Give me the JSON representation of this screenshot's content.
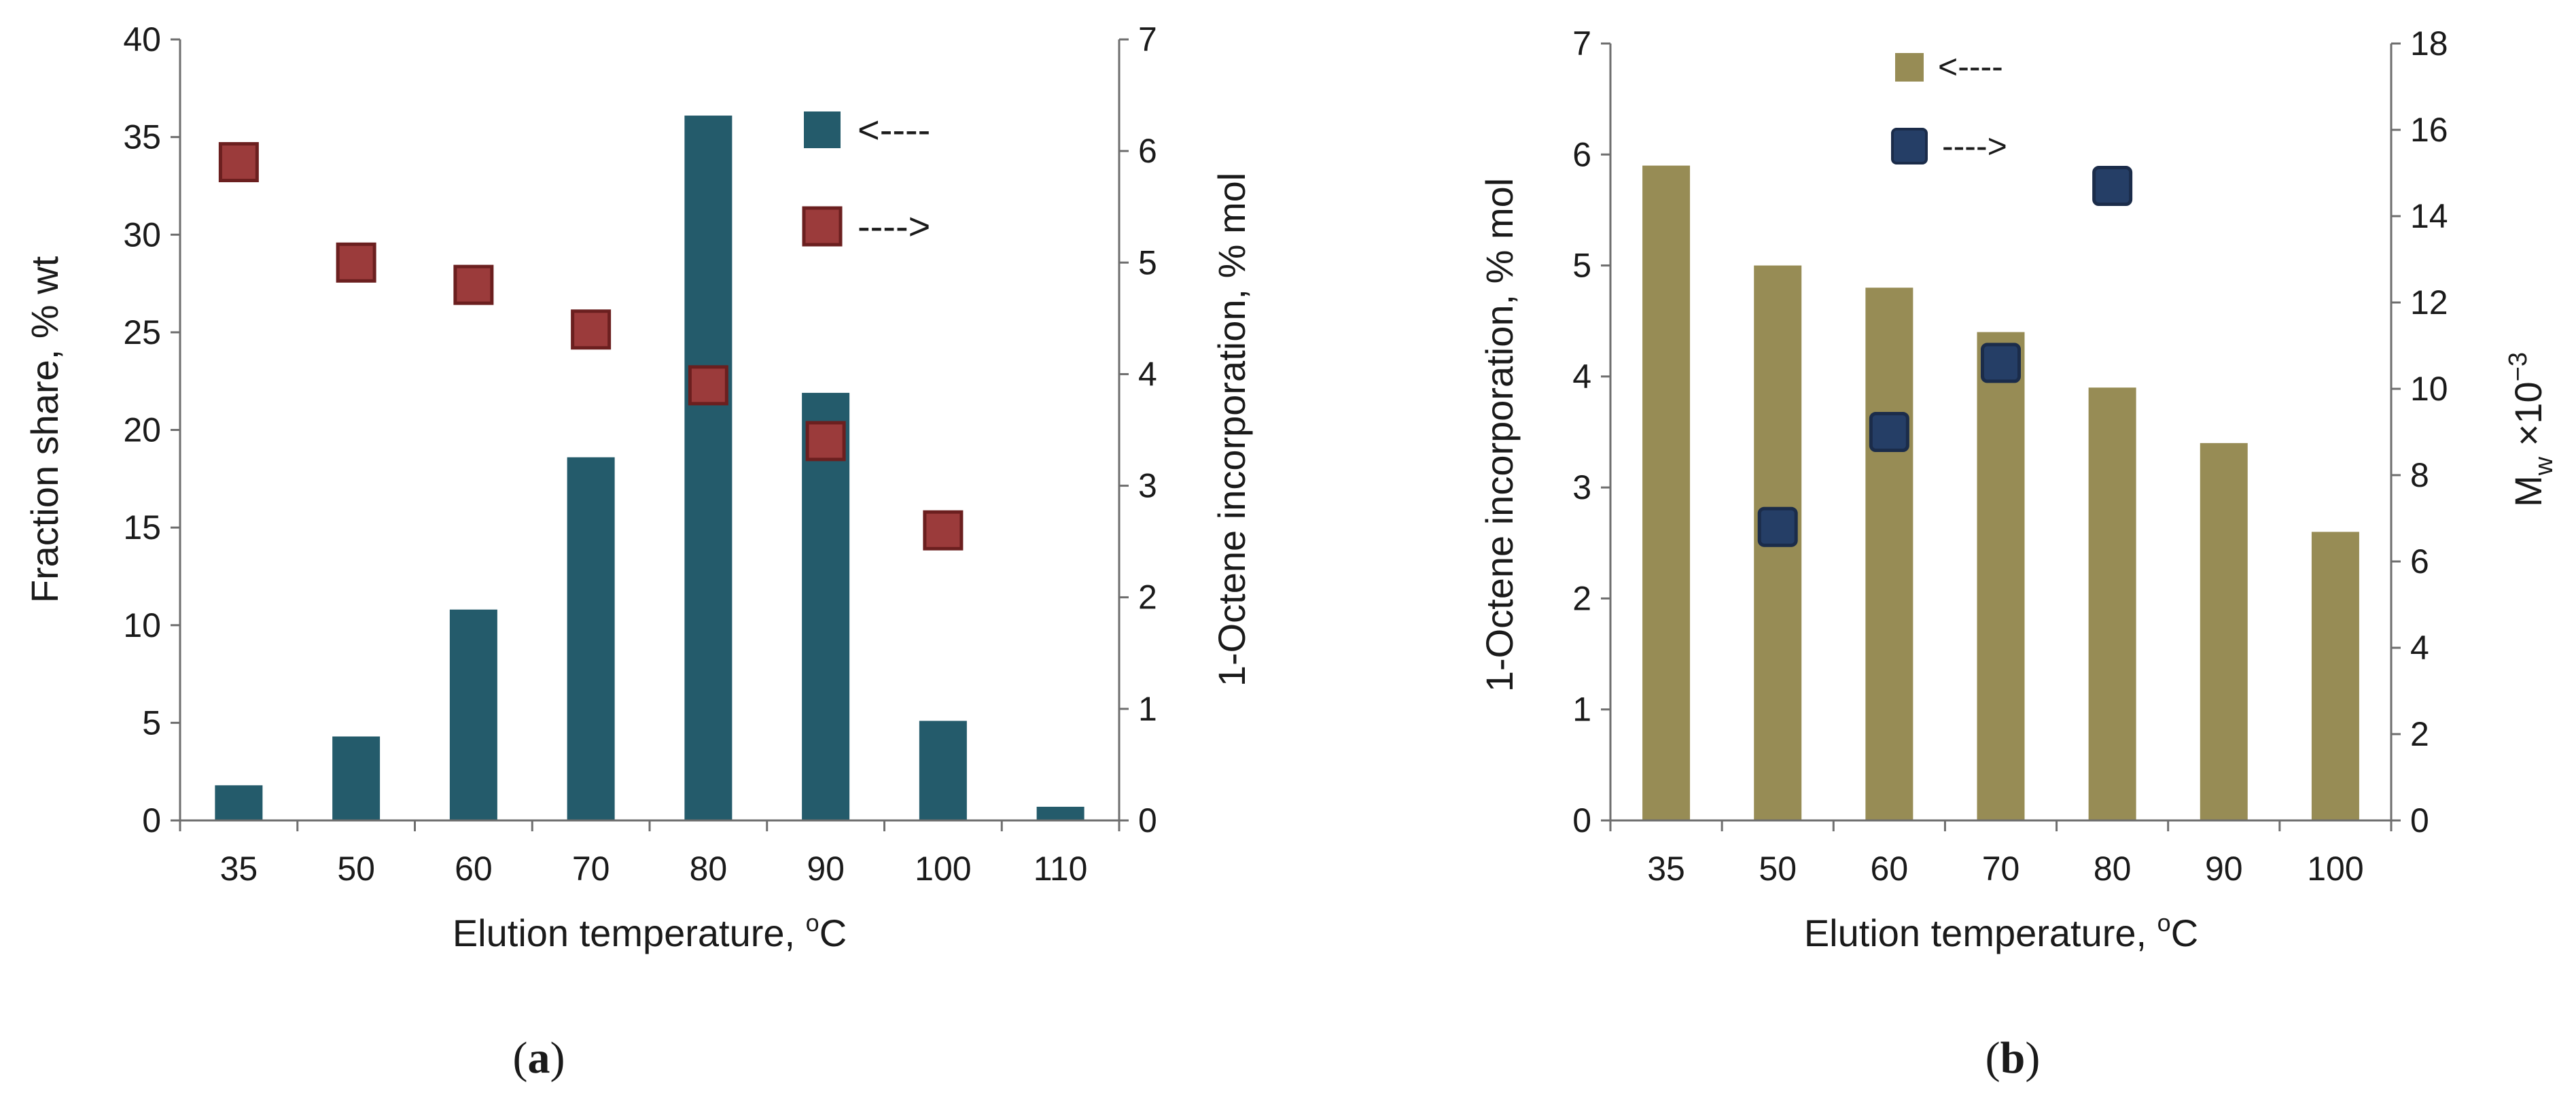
{
  "chart_data": [
    {
      "panel_label": "a",
      "type": "bar+scatter",
      "categories": [
        "35",
        "50",
        "60",
        "70",
        "80",
        "90",
        "100",
        "110"
      ],
      "series": [
        {
          "name": "Fraction share",
          "kind": "bar",
          "axis": "left",
          "color": "#245b6b",
          "values": [
            1.8,
            4.3,
            10.8,
            18.6,
            36.1,
            21.9,
            5.1,
            0.7
          ]
        },
        {
          "name": "1-Octene incorporation",
          "kind": "scatter",
          "axis": "right",
          "color": "#9b3b3b",
          "values": [
            5.9,
            5.0,
            4.8,
            4.4,
            3.9,
            3.4,
            2.6,
            null
          ]
        }
      ],
      "legend": [
        {
          "label": "<----",
          "series": "Fraction share"
        },
        {
          "label": "---->",
          "series": "1-Octene incorporation"
        }
      ],
      "legend_position": "top-right",
      "xlabel": "Elution temperature, ",
      "xlabel_sup": "o",
      "xlabel_unit": "C",
      "ylabel_left": "Fraction share, % wt",
      "ylabel_right": "1-Octene incorporation, % mol",
      "ylim_left": [
        0,
        40
      ],
      "ylim_right": [
        0,
        7
      ],
      "yticks_left": [
        "0",
        "5",
        "10",
        "15",
        "20",
        "25",
        "30",
        "35",
        "40"
      ],
      "yticks_right": [
        "0",
        "1",
        "2",
        "3",
        "4",
        "5",
        "6",
        "7"
      ]
    },
    {
      "panel_label": "b",
      "type": "bar+scatter",
      "categories": [
        "35",
        "50",
        "60",
        "70",
        "80",
        "90",
        "100"
      ],
      "series": [
        {
          "name": "1-Octene incorporation",
          "kind": "bar",
          "axis": "left",
          "color": "#978c55",
          "values": [
            5.9,
            5.0,
            4.8,
            4.4,
            3.9,
            3.4,
            2.6
          ]
        },
        {
          "name": "Mw x10^-3",
          "kind": "scatter",
          "axis": "right",
          "color": "#253e66",
          "values": [
            null,
            6.8,
            9.0,
            10.6,
            14.7,
            null,
            null
          ]
        }
      ],
      "legend": [
        {
          "label": "<----",
          "series": "1-Octene incorporation"
        },
        {
          "label": "---->",
          "series": "Mw x10^-3"
        }
      ],
      "legend_position": "top",
      "xlabel": "Elution temperature, ",
      "xlabel_sup": "o",
      "xlabel_unit": "C",
      "ylabel_left": "1-Octene incorporation, % mol",
      "ylabel_right_main": "M",
      "ylabel_right_sub": "w",
      "ylabel_right_rest": " ×10",
      "ylabel_right_sup": "−3",
      "ylim_left": [
        0,
        7
      ],
      "ylim_right": [
        0,
        18
      ],
      "yticks_left": [
        "0",
        "1",
        "2",
        "3",
        "4",
        "5",
        "6",
        "7"
      ],
      "yticks_right": [
        "0",
        "2",
        "4",
        "6",
        "8",
        "10",
        "12",
        "14",
        "16",
        "18"
      ]
    }
  ]
}
